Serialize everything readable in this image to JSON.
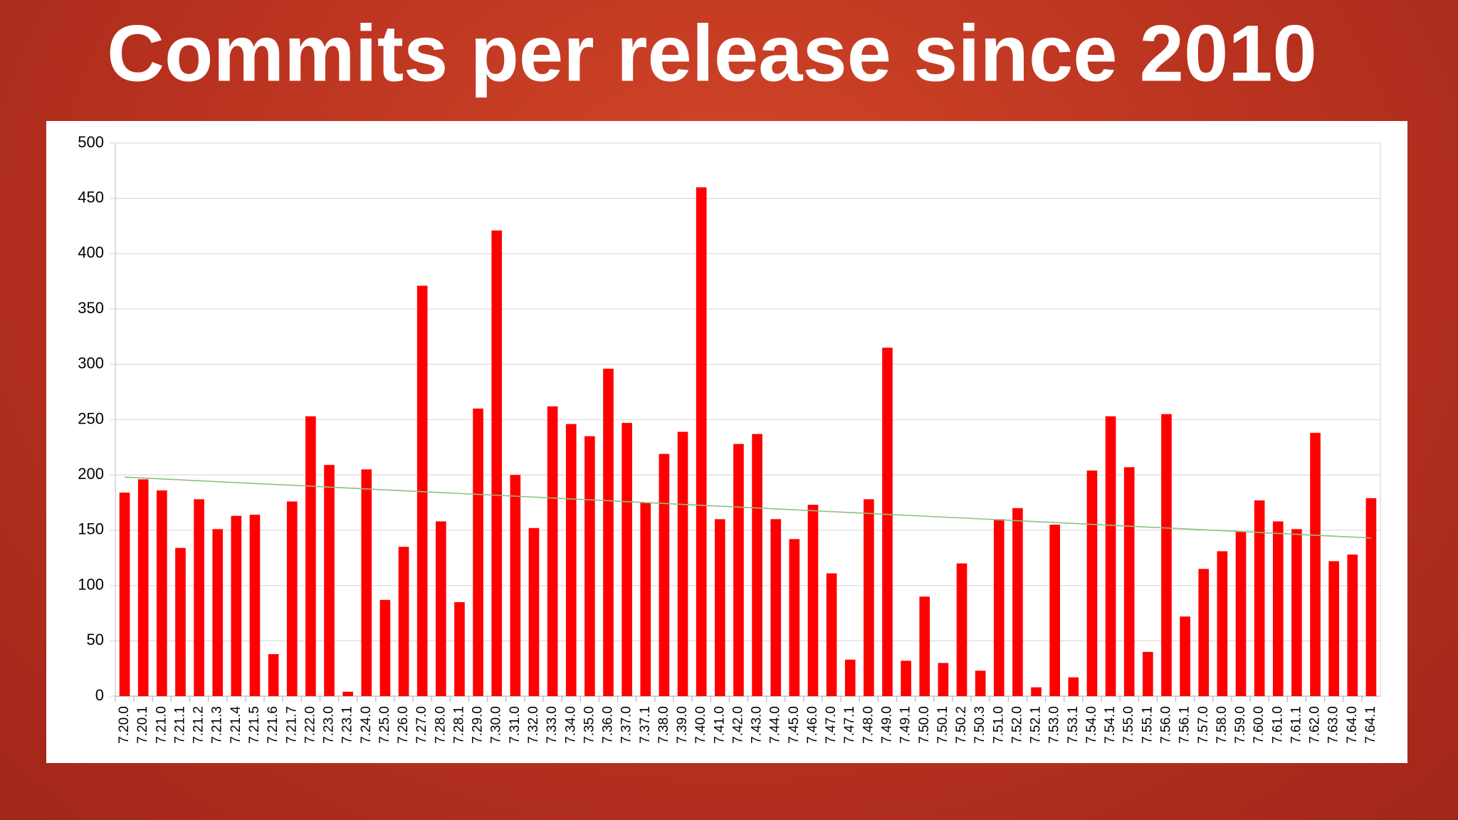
{
  "chart_data": {
    "type": "bar",
    "title": "Commits per release since 2010",
    "categories": [
      "7.20.0",
      "7.20.1",
      "7.21.0",
      "7.21.1",
      "7.21.2",
      "7.21.3",
      "7.21.4",
      "7.21.5",
      "7.21.6",
      "7.21.7",
      "7.22.0",
      "7.23.0",
      "7.23.1",
      "7.24.0",
      "7.25.0",
      "7.26.0",
      "7.27.0",
      "7.28.0",
      "7.28.1",
      "7.29.0",
      "7.30.0",
      "7.31.0",
      "7.32.0",
      "7.33.0",
      "7.34.0",
      "7.35.0",
      "7.36.0",
      "7.37.0",
      "7.37.1",
      "7.38.0",
      "7.39.0",
      "7.40.0",
      "7.41.0",
      "7.42.0",
      "7.43.0",
      "7.44.0",
      "7.45.0",
      "7.46.0",
      "7.47.0",
      "7.47.1",
      "7.48.0",
      "7.49.0",
      "7.49.1",
      "7.50.0",
      "7.50.1",
      "7.50.2",
      "7.50.3",
      "7.51.0",
      "7.52.0",
      "7.52.1",
      "7.53.0",
      "7.53.1",
      "7.54.0",
      "7.54.1",
      "7.55.0",
      "7.55.1",
      "7.56.0",
      "7.56.1",
      "7.57.0",
      "7.58.0",
      "7.59.0",
      "7.60.0",
      "7.61.0",
      "7.61.1",
      "7.62.0",
      "7.63.0",
      "7.64.0",
      "7.64.1"
    ],
    "values": [
      184,
      196,
      186,
      134,
      178,
      151,
      163,
      164,
      38,
      176,
      253,
      209,
      4,
      205,
      87,
      135,
      371,
      158,
      85,
      260,
      421,
      200,
      152,
      262,
      246,
      235,
      296,
      247,
      175,
      219,
      239,
      460,
      160,
      228,
      237,
      160,
      142,
      173,
      111,
      33,
      178,
      315,
      32,
      90,
      30,
      120,
      23,
      160,
      170,
      8,
      155,
      17,
      204,
      253,
      207,
      40,
      255,
      72,
      115,
      131,
      149,
      177,
      158,
      151,
      238,
      122,
      128,
      179
    ],
    "color": "#ff0000",
    "trendline": {
      "color": "#8fbf80",
      "values": [
        198,
        143
      ]
    },
    "ylim": [
      0,
      500
    ],
    "yticks": [
      0,
      50,
      100,
      150,
      200,
      250,
      300,
      350,
      400,
      450,
      500
    ],
    "grid": true
  }
}
